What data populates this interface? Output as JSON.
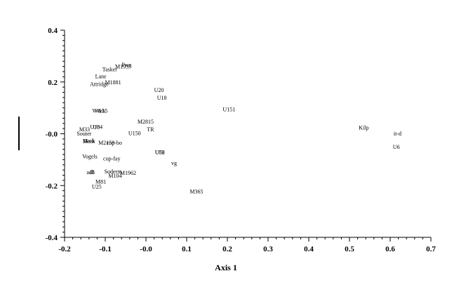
{
  "chart_data": {
    "type": "scatter",
    "title": "",
    "xlabel": "Axis 1",
    "ylabel": "",
    "xlim": [
      -0.2,
      0.7
    ],
    "ylim": [
      -0.4,
      0.4
    ],
    "grid": false,
    "legend": "none",
    "x_ticks": [
      "-0.2",
      "-0.1",
      "-0.0",
      "0.1",
      "0.2",
      "0.3",
      "0.4",
      "0.5",
      "0.6",
      "0.7"
    ],
    "y_ticks": [
      "0.4",
      "0.2",
      "-0.0",
      "-0.2",
      "-0.4"
    ],
    "points": [
      {
        "label": "Pwe",
        "x": -0.048,
        "y": 0.267
      },
      {
        "label": "M1939",
        "x": -0.056,
        "y": 0.26
      },
      {
        "label": "Tasker",
        "x": -0.089,
        "y": 0.25
      },
      {
        "label": "Lane",
        "x": -0.111,
        "y": 0.222
      },
      {
        "label": "M1881",
        "x": -0.081,
        "y": 0.2
      },
      {
        "label": "Attridge",
        "x": -0.115,
        "y": 0.193
      },
      {
        "label": "U20",
        "x": 0.032,
        "y": 0.17
      },
      {
        "label": "U18",
        "x": 0.039,
        "y": 0.14
      },
      {
        "label": "U151",
        "x": 0.204,
        "y": 0.095
      },
      {
        "label": "W&15",
        "x": -0.113,
        "y": 0.09
      },
      {
        "label": "Wels",
        "x": -0.113,
        "y": 0.09
      },
      {
        "label": "M2815",
        "x": -0.001,
        "y": 0.048
      },
      {
        "label": "U184",
        "x": -0.122,
        "y": 0.027
      },
      {
        "label": "U8",
        "x": -0.122,
        "y": 0.027
      },
      {
        "label": "TR",
        "x": 0.011,
        "y": 0.017
      },
      {
        "label": "M33",
        "x": -0.151,
        "y": 0.017
      },
      {
        "label": "U150",
        "x": -0.028,
        "y": 0.003
      },
      {
        "label": "Souter",
        "x": -0.152,
        "y": 0.001
      },
      {
        "label": "Kilp",
        "x": 0.535,
        "y": 0.025
      },
      {
        "label": "it-d",
        "x": 0.618,
        "y": 0.001
      },
      {
        "label": "Beck",
        "x": -0.14,
        "y": -0.027
      },
      {
        "label": "Mask",
        "x": -0.14,
        "y": -0.027
      },
      {
        "label": "M2158",
        "x": -0.097,
        "y": -0.034
      },
      {
        "label": "cop-bo",
        "x": -0.078,
        "y": -0.034
      },
      {
        "label": "U6",
        "x": 0.615,
        "y": -0.05
      },
      {
        "label": "U82",
        "x": 0.034,
        "y": -0.071
      },
      {
        "label": "U58",
        "x": 0.034,
        "y": -0.071
      },
      {
        "label": "Vogels",
        "x": -0.138,
        "y": -0.087
      },
      {
        "label": "cop-fay",
        "x": -0.084,
        "y": -0.095
      },
      {
        "label": "vg",
        "x": 0.069,
        "y": -0.112
      },
      {
        "label": "adh",
        "x": -0.136,
        "y": -0.148
      },
      {
        "label": "ill",
        "x": -0.132,
        "y": -0.148
      },
      {
        "label": "Soderm",
        "x": -0.081,
        "y": -0.145
      },
      {
        "label": "M1962",
        "x": -0.044,
        "y": -0.151
      },
      {
        "label": "M104",
        "x": -0.076,
        "y": -0.161
      },
      {
        "label": "M81",
        "x": -0.111,
        "y": -0.184
      },
      {
        "label": "U25",
        "x": -0.121,
        "y": -0.203
      },
      {
        "label": "M365",
        "x": 0.124,
        "y": -0.223
      }
    ]
  }
}
